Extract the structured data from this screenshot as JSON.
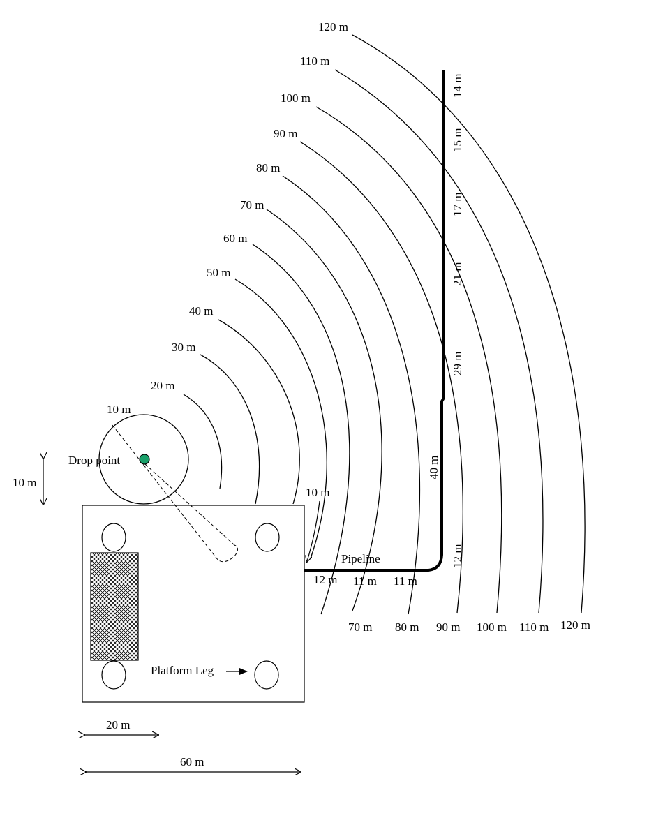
{
  "arc_labels": {
    "top": [
      "10 m",
      "20 m",
      "30 m",
      "40 m",
      "50 m",
      "60 m",
      "70 m",
      "80 m",
      "90 m",
      "100 m",
      "110 m",
      "120 m"
    ],
    "bottom": [
      "70 m",
      "80 m",
      "90 m",
      "100 m",
      "110 m",
      "120 m"
    ]
  },
  "segments_vertical": [
    "14 m",
    "15 m",
    "17 m",
    "21 m",
    "29 m",
    "40 m",
    "12 m"
  ],
  "segments_horizontal": [
    "12 m",
    "11 m",
    "11 m"
  ],
  "labels": {
    "drop_point": "Drop point",
    "platform_leg": "Platform Leg",
    "pipeline": "Pipeline",
    "pointer_10m": "10 m",
    "dim_left": "10 m",
    "dim_20": "20 m",
    "dim_60": "60 m"
  },
  "colors": {
    "drop_point": "#1aa06a",
    "line": "#000000",
    "hatch": "#000000"
  },
  "icons": [
    "drop-point-marker-icon",
    "arrow-icon"
  ]
}
